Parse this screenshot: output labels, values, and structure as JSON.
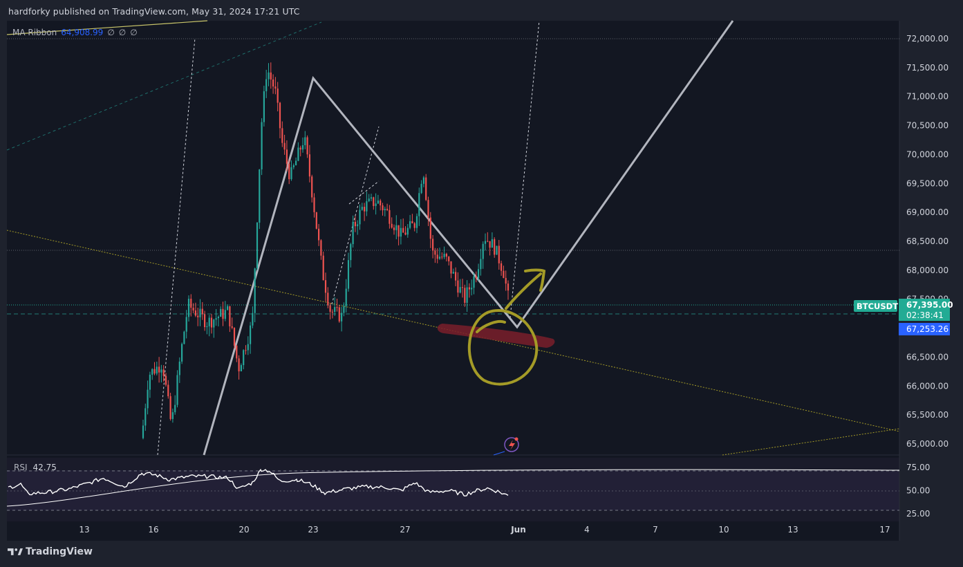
{
  "header": {
    "title": "hardforky published on TradingView.com, May 31, 2024 17:21 UTC"
  },
  "footer": {
    "brand": "TradingView"
  },
  "indicator_ma": {
    "name": "MA Ribbon",
    "value": "64,908.99",
    "placeholders": [
      "∅",
      "∅",
      "∅"
    ]
  },
  "indicator_rsi": {
    "name": "RSI",
    "value": "42.75"
  },
  "symbol_tag": {
    "label": "BTCUSDT",
    "price": "67,395.00",
    "countdown": "02:38:41",
    "ma_price": "67,253.26"
  },
  "colors": {
    "background": "#131722",
    "page": "#1e222d",
    "up": "#26a69a",
    "down": "#ef5350",
    "accent_teal": "#22ab94",
    "ma_blue": "#2962ff",
    "drawing_gray": "#b2b5be",
    "marker_yellow": "#a49b27",
    "marker_red": "#7a1f2a"
  },
  "chart_data": {
    "type": "candlestick",
    "symbol": "BTCUSDT",
    "price_axis": {
      "ticks": [
        "72,000.00",
        "71,500.00",
        "71,000.00",
        "70,500.00",
        "70,000.00",
        "69,500.00",
        "69,000.00",
        "68,500.00",
        "68,000.00",
        "67,500.00",
        "67,000.00",
        "66,500.00",
        "66,000.00",
        "65,500.00",
        "65,000.00"
      ],
      "range": [
        64900,
        72200
      ]
    },
    "time_axis": {
      "ticks": [
        "13",
        "16",
        "20",
        "23",
        "27",
        "Jun",
        "4",
        "7",
        "10",
        "13",
        "17"
      ]
    },
    "rsi_axis": {
      "ticks": [
        "75.00",
        "50.00",
        "25.00"
      ],
      "range": [
        20,
        80
      ]
    },
    "current_price": 67395,
    "ma_value": 67253.26,
    "key_levels": [
      72000,
      68340,
      67395
    ]
  }
}
